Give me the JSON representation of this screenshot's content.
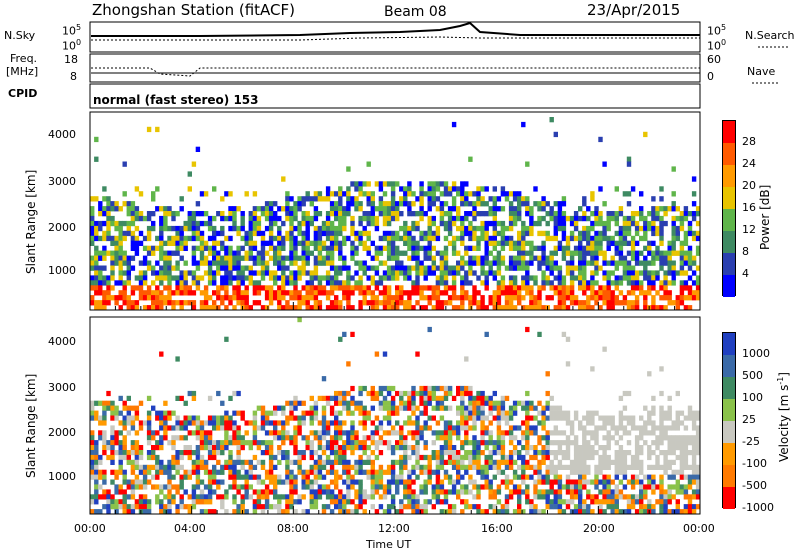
{
  "header": {
    "station": "Zhongshan Station (fitACF)",
    "beam": "Beam 08",
    "date": "23/Apr/2015"
  },
  "strip_panels": {
    "nsky_label": "N.Sky",
    "nsky_top": "10^5",
    "nsky_bottom": "10^0",
    "nsearch_top": "10^5",
    "nsearch_bottom": "10^0",
    "nsearch_label": "N.Search",
    "freq_label_line1": "Freq.",
    "freq_label_line2": "[MHz]",
    "freq_top": "18",
    "freq_bottom": "8",
    "nave_top": "60",
    "nave_bottom": "0",
    "nave_label": "Nave",
    "cpid_label": "CPID",
    "cpid_text": "normal (fast stereo) 153"
  },
  "power_colorbar": {
    "label": "Power [dB]",
    "ticks": [
      "28",
      "24",
      "20",
      "16",
      "12",
      "8",
      "4"
    ],
    "colors": [
      "#ff0000",
      "#ff5a00",
      "#ff9a00",
      "#e8c400",
      "#5fb54a",
      "#3e8a62",
      "#2a3fb0",
      "#0000ff"
    ]
  },
  "velocity_colorbar": {
    "label_main": "Velocity [m s",
    "label_sup": "-1",
    "label_end": "]",
    "ticks": [
      "1000",
      "500",
      "100",
      "25",
      "-25",
      "-100",
      "-500",
      "-1000"
    ],
    "colors": [
      "#2040c0",
      "#3a6aa8",
      "#3e8a62",
      "#8ac24a",
      "#c8c8c0",
      "#ff9a00",
      "#ff7a00",
      "#ff0000"
    ]
  },
  "chart_data": [
    {
      "type": "heatmap",
      "name": "power",
      "ylabel": "Slant Range [km]",
      "yticks": [
        "4000",
        "3000",
        "2000",
        "1000"
      ],
      "ylim": [
        180,
        4500
      ],
      "xlim": [
        0,
        24
      ],
      "xticks": [
        "00:00",
        "04:00",
        "08:00",
        "12:00",
        "16:00",
        "20:00",
        "00:00"
      ],
      "scale_range": [
        0,
        30
      ]
    },
    {
      "type": "heatmap",
      "name": "velocity",
      "ylabel": "Slant Range [km]",
      "yticks": [
        "4000",
        "3000",
        "2000",
        "1000"
      ],
      "ylim": [
        180,
        4500
      ],
      "xlim": [
        0,
        24
      ],
      "xticks": [
        "00:00",
        "04:00",
        "08:00",
        "12:00",
        "16:00",
        "20:00",
        "00:00"
      ],
      "xlabel": "Time UT",
      "scale_range": [
        -1000,
        1000
      ]
    }
  ]
}
